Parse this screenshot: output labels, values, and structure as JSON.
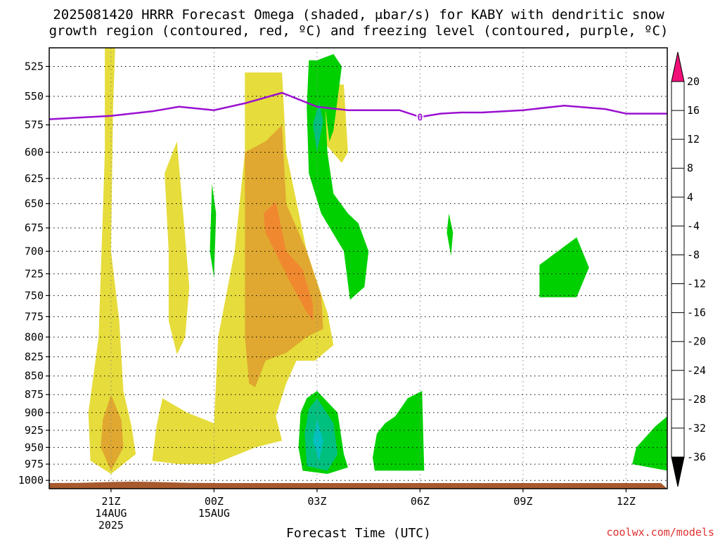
{
  "chart_data": {
    "type": "heatmap",
    "title_lines": [
      "2025081420 HRRR Forecast Omega (shaded, μbar/s) for KABY with dendritic snow",
      "growth region (contoured, red, ºC) and freezing level (contoured, purple, ºC)"
    ],
    "xlabel": "Forecast Time (UTC)",
    "credit": "coolwx.com/models",
    "x_range_hours": [
      -3,
      27
    ],
    "x_ticks": [
      {
        "hour": 0,
        "lines": [
          "21Z",
          "14AUG",
          "2025"
        ]
      },
      {
        "hour": 5,
        "lines": [
          "00Z",
          "15AUG"
        ]
      },
      {
        "hour": 10,
        "lines": [
          "03Z"
        ]
      },
      {
        "hour": 15,
        "lines": [
          "06Z"
        ]
      },
      {
        "hour": 20,
        "lines": [
          "09Z"
        ]
      },
      {
        "hour": 25,
        "lines": [
          "12Z"
        ]
      }
    ],
    "y_axis": {
      "scale": "log-pressure",
      "units": "mb",
      "range": [
        1013,
        510
      ],
      "ticks": [
        525,
        550,
        575,
        600,
        625,
        650,
        675,
        700,
        725,
        750,
        775,
        800,
        825,
        850,
        875,
        900,
        925,
        950,
        975,
        1000
      ]
    },
    "grid": true,
    "colorbar": {
      "labels": [
        20,
        16,
        12,
        8,
        4,
        -4,
        -8,
        -12,
        -16,
        -20,
        -24,
        -28,
        -32,
        -36
      ],
      "bins": [
        {
          "range": "16..20",
          "color": "#f04040"
        },
        {
          "range": "12..16",
          "color": "#f08830"
        },
        {
          "range": "8..12",
          "color": "#e0a830"
        },
        {
          "range": "4..8",
          "color": "#e6dc3c"
        },
        {
          "range": "-4..4",
          "color": "#ffffff"
        },
        {
          "range": "-8..-4",
          "color": "#00d000"
        },
        {
          "range": "-12..-8",
          "color": "#00c080"
        },
        {
          "range": "-16..-12",
          "color": "#00c0c0"
        },
        {
          "range": "-20..-16",
          "color": "#00a0f0"
        },
        {
          "range": "-24..-20",
          "color": "#2040f0"
        },
        {
          "range": "-28..-24",
          "color": "#7020e0"
        },
        {
          "range": "-32..-28",
          "color": "#b010c0"
        },
        {
          "range": "-36..-32",
          "color": "#b0b0b0"
        }
      ],
      "top_arrow_color": "#f01078",
      "bottom_arrow_color": "#000000"
    },
    "freezing_level": {
      "color": "#9a10d0",
      "label": "0",
      "label_at": {
        "hour": 15,
        "p": 568
      },
      "points": [
        [
          -3,
          570
        ],
        [
          0,
          567
        ],
        [
          2,
          563
        ],
        [
          3.3,
          559
        ],
        [
          5,
          562
        ],
        [
          6.5,
          556
        ],
        [
          8.3,
          547
        ],
        [
          10,
          559
        ],
        [
          11.5,
          562
        ],
        [
          13,
          562
        ],
        [
          14,
          562
        ],
        [
          15,
          568
        ],
        [
          16,
          565
        ],
        [
          17,
          564
        ],
        [
          18,
          564
        ],
        [
          20,
          562
        ],
        [
          22,
          558
        ],
        [
          24,
          561
        ],
        [
          25,
          565
        ],
        [
          27,
          565
        ]
      ]
    },
    "ground_color": "#a85a2e",
    "omega_regions": [
      {
        "bin": "4..8",
        "points": [
          [
            -0.3,
            510
          ],
          [
            0.2,
            510
          ],
          [
            0.1,
            560
          ],
          [
            0,
            700
          ],
          [
            0.4,
            780
          ],
          [
            0.6,
            870
          ],
          [
            1,
            920
          ],
          [
            1.2,
            960
          ],
          [
            0,
            990
          ],
          [
            -1,
            970
          ],
          [
            -1.1,
            900
          ],
          [
            -0.6,
            800
          ],
          [
            -0.3,
            600
          ]
        ]
      },
      {
        "bin": "8..12",
        "points": [
          [
            0,
            875
          ],
          [
            0.5,
            910
          ],
          [
            0.6,
            950
          ],
          [
            0,
            985
          ],
          [
            -0.5,
            950
          ],
          [
            -0.4,
            910
          ]
        ]
      },
      {
        "bin": "4..8",
        "points": [
          [
            3.2,
            590
          ],
          [
            3.5,
            660
          ],
          [
            3.8,
            740
          ],
          [
            3.6,
            800
          ],
          [
            3.2,
            822
          ],
          [
            2.8,
            780
          ],
          [
            2.8,
            700
          ],
          [
            2.6,
            620
          ]
        ]
      },
      {
        "bin": "4..8",
        "points": [
          [
            2.5,
            880
          ],
          [
            3.7,
            900
          ],
          [
            5,
            915
          ],
          [
            5.2,
            800
          ],
          [
            6,
            700
          ],
          [
            6.5,
            600
          ],
          [
            6.5,
            530
          ],
          [
            8.3,
            530
          ],
          [
            8.5,
            600
          ],
          [
            9.5,
            700
          ],
          [
            10.5,
            770
          ],
          [
            10.8,
            810
          ],
          [
            9.9,
            830
          ],
          [
            9,
            830
          ],
          [
            8.5,
            860
          ],
          [
            8,
            905
          ],
          [
            8.3,
            940
          ],
          [
            7,
            950
          ],
          [
            5,
            975
          ],
          [
            3.3,
            975
          ],
          [
            2,
            970
          ],
          [
            2.2,
            920
          ]
        ]
      },
      {
        "bin": "8..12",
        "points": [
          [
            6.5,
            600
          ],
          [
            7.5,
            590
          ],
          [
            8.3,
            575
          ],
          [
            8.5,
            650
          ],
          [
            9.5,
            700
          ],
          [
            10.2,
            750
          ],
          [
            10.3,
            790
          ],
          [
            9.5,
            800
          ],
          [
            8.5,
            820
          ],
          [
            7.5,
            830
          ],
          [
            7,
            865
          ],
          [
            6.7,
            860
          ],
          [
            6.5,
            800
          ],
          [
            6.5,
            700
          ]
        ]
      },
      {
        "bin": "12..16",
        "points": [
          [
            7.4,
            660
          ],
          [
            8,
            648
          ],
          [
            8.5,
            700
          ],
          [
            9.3,
            720
          ],
          [
            9.8,
            760
          ],
          [
            9.8,
            780
          ],
          [
            9.5,
            770
          ],
          [
            8.6,
            730
          ],
          [
            7.5,
            680
          ]
        ]
      },
      {
        "bin": "4..8",
        "points": [
          [
            9.6,
            540
          ],
          [
            10.3,
            560
          ],
          [
            10.6,
            540
          ],
          [
            11.3,
            540
          ],
          [
            11.5,
            600
          ],
          [
            11.2,
            610
          ],
          [
            10.3,
            590
          ],
          [
            9.9,
            625
          ]
        ]
      },
      {
        "bin": "-8..-4",
        "points": [
          [
            10,
            520
          ],
          [
            10.8,
            515
          ],
          [
            11.2,
            525
          ],
          [
            10.8,
            580
          ],
          [
            10.6,
            590
          ],
          [
            10.4,
            560
          ],
          [
            10.5,
            600
          ],
          [
            10.8,
            640
          ],
          [
            11.5,
            660
          ],
          [
            12,
            670
          ],
          [
            12.5,
            700
          ],
          [
            12.3,
            740
          ],
          [
            11.6,
            755
          ],
          [
            11.3,
            700
          ],
          [
            10.2,
            660
          ],
          [
            9.6,
            620
          ],
          [
            9.5,
            560
          ],
          [
            9.6,
            520
          ]
        ]
      },
      {
        "bin": "-12..-8",
        "points": [
          [
            10.1,
            555
          ],
          [
            10.3,
            572
          ],
          [
            10,
            600
          ],
          [
            9.8,
            575
          ]
        ]
      },
      {
        "bin": "-8..-4",
        "points": [
          [
            4.9,
            630
          ],
          [
            5.1,
            660
          ],
          [
            5,
            730
          ],
          [
            4.8,
            700
          ]
        ]
      },
      {
        "bin": "-8..-4",
        "points": [
          [
            16.4,
            660
          ],
          [
            16.6,
            680
          ],
          [
            16.5,
            705
          ],
          [
            16.3,
            680
          ]
        ]
      },
      {
        "bin": "-8..-4",
        "points": [
          [
            9.5,
            880
          ],
          [
            10,
            870
          ],
          [
            11,
            900
          ],
          [
            11.3,
            960
          ],
          [
            11.5,
            980
          ],
          [
            10.5,
            990
          ],
          [
            9.3,
            985
          ],
          [
            9.1,
            950
          ],
          [
            9.2,
            900
          ]
        ]
      },
      {
        "bin": "-12..-8",
        "points": [
          [
            9.6,
            895
          ],
          [
            10,
            880
          ],
          [
            10.8,
            915
          ],
          [
            11,
            960
          ],
          [
            10.5,
            985
          ],
          [
            9.5,
            978
          ],
          [
            9.4,
            930
          ]
        ]
      },
      {
        "bin": "-16..-12",
        "points": [
          [
            10,
            910
          ],
          [
            10.3,
            940
          ],
          [
            10.1,
            970
          ],
          [
            9.8,
            940
          ]
        ]
      },
      {
        "bin": "-8..-4",
        "points": [
          [
            14.4,
            880
          ],
          [
            15.1,
            870
          ],
          [
            15.2,
            985
          ],
          [
            12.8,
            985
          ],
          [
            12.7,
            965
          ],
          [
            12.9,
            930
          ],
          [
            13.3,
            915
          ],
          [
            13.8,
            905
          ]
        ]
      },
      {
        "bin": "-8..-4",
        "points": [
          [
            20.8,
            715
          ],
          [
            22.6,
            685
          ],
          [
            23.2,
            718
          ],
          [
            22.6,
            752
          ],
          [
            20.8,
            752
          ]
        ]
      },
      {
        "bin": "-8..-4",
        "points": [
          [
            27,
            905
          ],
          [
            27,
            985
          ],
          [
            25.3,
            975
          ],
          [
            25.5,
            950
          ],
          [
            26.4,
            920
          ]
        ]
      }
    ]
  }
}
